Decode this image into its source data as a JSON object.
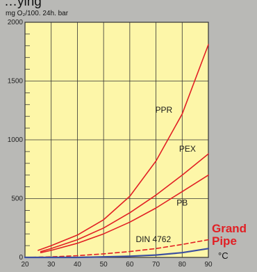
{
  "chart_data": {
    "type": "line",
    "title_fragment": "…ying",
    "ylabel": "mg O₂/100. 24h. bar",
    "xunit": "°C",
    "xlim": [
      20,
      90
    ],
    "ylim": [
      0,
      2000
    ],
    "xticks": [
      20,
      30,
      40,
      50,
      60,
      70,
      80,
      90
    ],
    "yticks": [
      0,
      500,
      1000,
      1500,
      2000
    ],
    "grid": true,
    "colors": {
      "plot_bg": "#fdf6a8",
      "page_bg": "#b9b9b6",
      "curve_red": "#e11f24",
      "curve_blue": "#3b4fa0",
      "grid": "#333333"
    },
    "series": [
      {
        "name": "PPR",
        "color": "#e11f24",
        "style": "solid",
        "x": [
          25,
          30,
          40,
          50,
          60,
          70,
          80,
          90
        ],
        "y": [
          60,
          100,
          190,
          320,
          520,
          820,
          1220,
          1810
        ]
      },
      {
        "name": "PEX",
        "color": "#e11f24",
        "style": "solid",
        "x": [
          26,
          30,
          40,
          50,
          60,
          70,
          80,
          90
        ],
        "y": [
          50,
          75,
          150,
          250,
          380,
          530,
          700,
          880
        ]
      },
      {
        "name": "PB",
        "color": "#e11f24",
        "style": "solid",
        "x": [
          26,
          30,
          40,
          50,
          60,
          70,
          80,
          90
        ],
        "y": [
          40,
          60,
          120,
          200,
          300,
          420,
          560,
          700
        ]
      },
      {
        "name": "DIN 4762",
        "color": "#e11f24",
        "style": "dashed",
        "x": [
          20,
          30,
          40,
          50,
          60,
          70,
          80,
          90
        ],
        "y": [
          0,
          5,
          15,
          30,
          50,
          75,
          110,
          150
        ]
      },
      {
        "name": "Grand Pipe",
        "color": "#3b4fa0",
        "style": "solid",
        "x": [
          20,
          40,
          50,
          60,
          70,
          80,
          90
        ],
        "y": [
          0,
          0,
          5,
          10,
          20,
          40,
          75
        ]
      }
    ],
    "curve_labels": [
      {
        "text": "PPR",
        "x": 73,
        "y": 1230
      },
      {
        "text": "PEX",
        "x": 82,
        "y": 900
      },
      {
        "text": "PB",
        "x": 80,
        "y": 440
      },
      {
        "text": "DIN 4762",
        "x": 69,
        "y": 130
      }
    ],
    "brand": [
      "Grand",
      "Pipe"
    ]
  }
}
